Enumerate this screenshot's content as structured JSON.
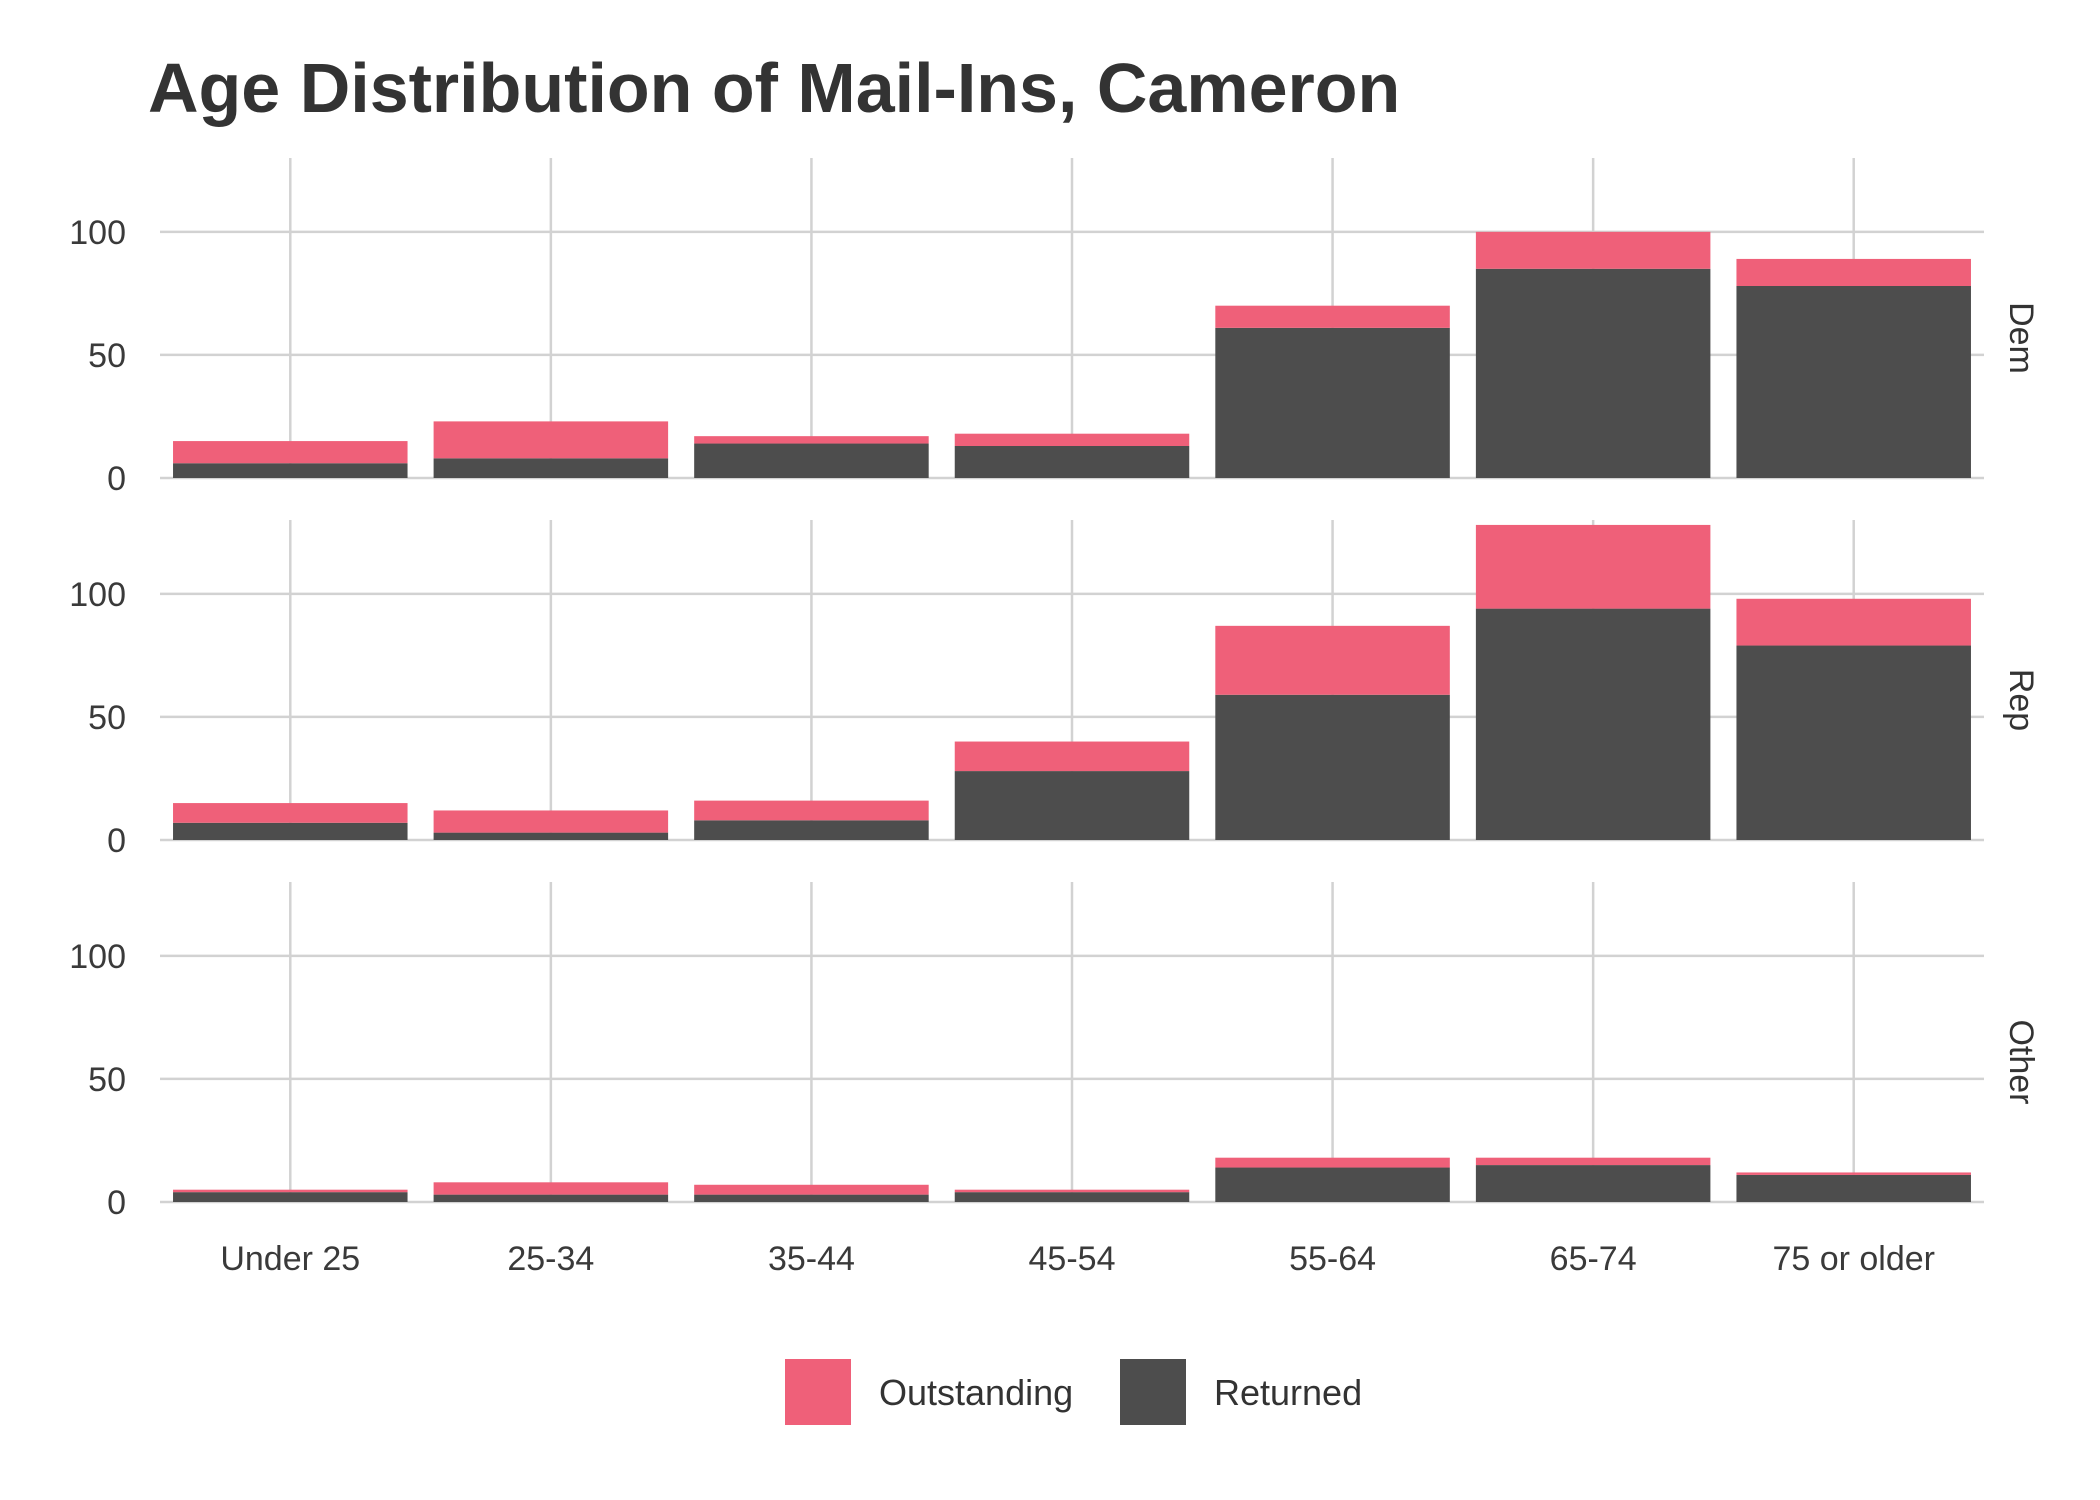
{
  "chart_data": {
    "type": "bar",
    "stacked": true,
    "faceted": true,
    "title": "Age Distribution of Mail-Ins, Cameron",
    "xlabel": "",
    "ylabel": "",
    "categories": [
      "Under 25",
      "25-34",
      "35-44",
      "45-54",
      "55-64",
      "65-74",
      "75 or older"
    ],
    "ylim": [
      0,
      130
    ],
    "yticks": [
      0,
      50,
      100
    ],
    "grid": true,
    "legend_position": "bottom",
    "series_order": [
      "Outstanding",
      "Returned"
    ],
    "colors": {
      "Outstanding": "#ef6079",
      "Returned": "#4d4d4d"
    },
    "facets": [
      {
        "name": "Dem",
        "series": [
          {
            "name": "Returned",
            "values": [
              6,
              8,
              14,
              13,
              61,
              85,
              78
            ]
          },
          {
            "name": "Outstanding",
            "values": [
              9,
              15,
              3,
              5,
              9,
              15,
              11
            ]
          }
        ]
      },
      {
        "name": "Rep",
        "series": [
          {
            "name": "Returned",
            "values": [
              7,
              3,
              8,
              28,
              59,
              94,
              79
            ]
          },
          {
            "name": "Outstanding",
            "values": [
              8,
              9,
              8,
              12,
              28,
              34,
              19
            ]
          }
        ]
      },
      {
        "name": "Other",
        "series": [
          {
            "name": "Returned",
            "values": [
              4,
              3,
              3,
              4,
              14,
              15,
              11
            ]
          },
          {
            "name": "Outstanding",
            "values": [
              1,
              5,
              4,
              1,
              4,
              3,
              1
            ]
          }
        ]
      }
    ]
  }
}
